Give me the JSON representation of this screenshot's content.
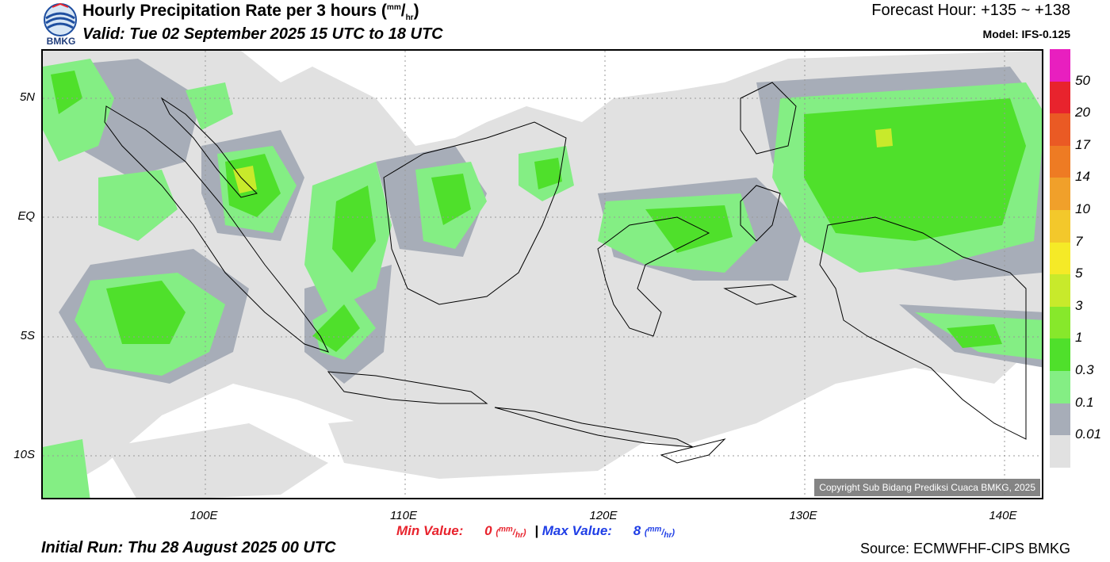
{
  "header": {
    "title": "Hourly Precipitation Rate per 3 hours",
    "unit_num": "mm",
    "unit_den": "hr",
    "valid": "Valid: Tue 02 September 2025 15 UTC to 18 UTC",
    "forecast_hour": "Forecast Hour: +135 ~ +138",
    "model": "Model: IFS-0.125",
    "logo_text": "BMKG"
  },
  "map": {
    "lat_labels": [
      "5N",
      "EQ",
      "5S",
      "10S"
    ],
    "lon_labels": [
      "100E",
      "110E",
      "120E",
      "130E",
      "140E"
    ],
    "copyright": "Copyright Sub Bidang Prediksi Cuaca BMKG, 2025"
  },
  "stats": {
    "min_label": "Min Value:",
    "min_value": "0",
    "separator": "|",
    "max_label": "Max Value:",
    "max_value": "8",
    "unit_num": "mm",
    "unit_den": "hr"
  },
  "footer": {
    "initial_run": "Initial Run: Thu 28 August 2025 00 UTC",
    "source": "Source: ECMWFHF-CIPS BMKG"
  },
  "legend": {
    "labels": [
      "50",
      "20",
      "17",
      "14",
      "10",
      "7",
      "5",
      "3",
      "1",
      "0.3",
      "0.1",
      "0.01"
    ],
    "colors": [
      "#e81fbf",
      "#e8232d",
      "#ea5a24",
      "#ee7b23",
      "#f0a02a",
      "#f3c82b",
      "#f5ea27",
      "#c8ea2b",
      "#87e82b",
      "#4fe02b",
      "#84ee84",
      "#a7adb8",
      "#e1e1e1"
    ]
  },
  "colors": {
    "land_outline": "#000000",
    "precip_light": "#e1e1e1",
    "precip_grey": "#a7adb8",
    "precip_lightgreen": "#84ee84",
    "precip_green": "#4fe02b",
    "precip_yellowgreen": "#c8ea2b"
  }
}
